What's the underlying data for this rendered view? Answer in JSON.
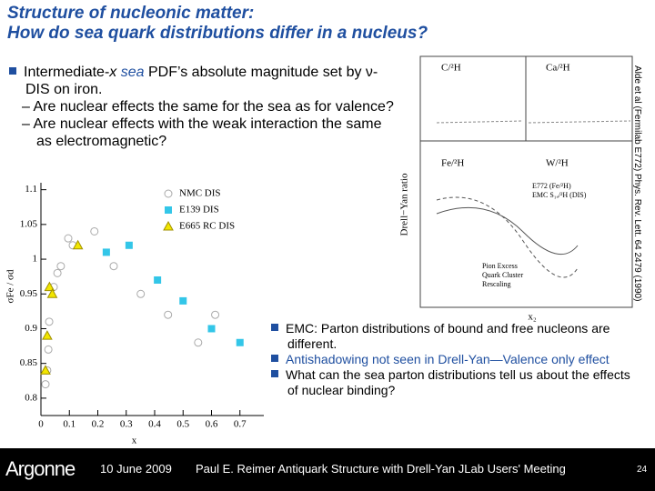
{
  "title": [
    "Structure of nucleonic matter:",
    "How do sea quark distributions differ in a nucleus?"
  ],
  "top_bullet": {
    "parts": [
      "Intermediate-",
      "x",
      " ",
      "sea",
      " PDF’s absolute magnitude set by ",
      "ν",
      "-DIS on iron."
    ],
    "subs": [
      "Are nuclear effects the same for the sea as for valence?",
      "Are nuclear effects with the weak interaction the same as electromagnetic?"
    ]
  },
  "left_plot": {
    "ylabel": "σFe / σd",
    "xlabel": "x",
    "xlim": [
      0,
      0.8
    ],
    "ylim": [
      0.775,
      1.11
    ],
    "xticks": [
      0,
      0.1,
      0.2,
      0.3,
      0.4,
      0.5,
      0.6,
      0.7
    ],
    "yticks": [
      0.8,
      0.85,
      0.9,
      0.95,
      1,
      1.05,
      1.1
    ],
    "series": [
      {
        "name": "NMC DIS",
        "marker": "circle",
        "color": "#aaaaaa",
        "x": [
          0.016,
          0.022,
          0.026,
          0.029,
          0.045,
          0.058,
          0.07,
          0.096,
          0.112,
          0.188,
          0.256,
          0.351,
          0.447,
          0.553,
          0.613
        ],
        "values": [
          0.82,
          0.84,
          0.87,
          0.91,
          0.96,
          0.98,
          0.99,
          1.03,
          1.02,
          1.04,
          0.99,
          0.95,
          0.92,
          0.88,
          0.92
        ]
      },
      {
        "name": "E139 DIS",
        "marker": "square",
        "color": "#33c6e8",
        "x": [
          0.23,
          0.31,
          0.41,
          0.5,
          0.6,
          0.7
        ],
        "values": [
          1.01,
          1.02,
          0.97,
          0.94,
          0.9,
          0.88
        ]
      },
      {
        "name": "E665 RC DIS",
        "marker": "triangle",
        "color": "#f2e600",
        "x": [
          0.03,
          0.04,
          0.022,
          0.016,
          0.13
        ],
        "values": [
          0.96,
          0.95,
          0.89,
          0.84,
          1.02
        ]
      }
    ]
  },
  "right_plot": {
    "ylabel": "Drell−Yan ratio",
    "xlabel": "x₂",
    "panels": [
      "C/²H",
      "Ca/²H",
      "Fe/²H",
      "W/²H"
    ],
    "legend": [
      "E772 (Fe/²H)",
      "EMC S₁ₐ/²H (DIS)",
      "Pion Excess",
      "Quark Cluster",
      "Rescaling"
    ]
  },
  "citation": "Alde et al (Fermilab E772) Phys. Rev. Lett. 64 2479 (1990)",
  "bottom_bullets": [
    "EMC:  Parton distributions of bound and free nucleons are different.",
    "Antishadowing not seen in Drell-Yan—Valence only effect",
    "What can the sea parton distributions tell us about the effects of nuclear binding?"
  ],
  "footer": {
    "logo": "Argonne",
    "date": "10 June 2009",
    "talk": "Paul E. Reimer  Antiquark Structure with Drell-Yan JLab Users' Meeting",
    "page": "24"
  }
}
